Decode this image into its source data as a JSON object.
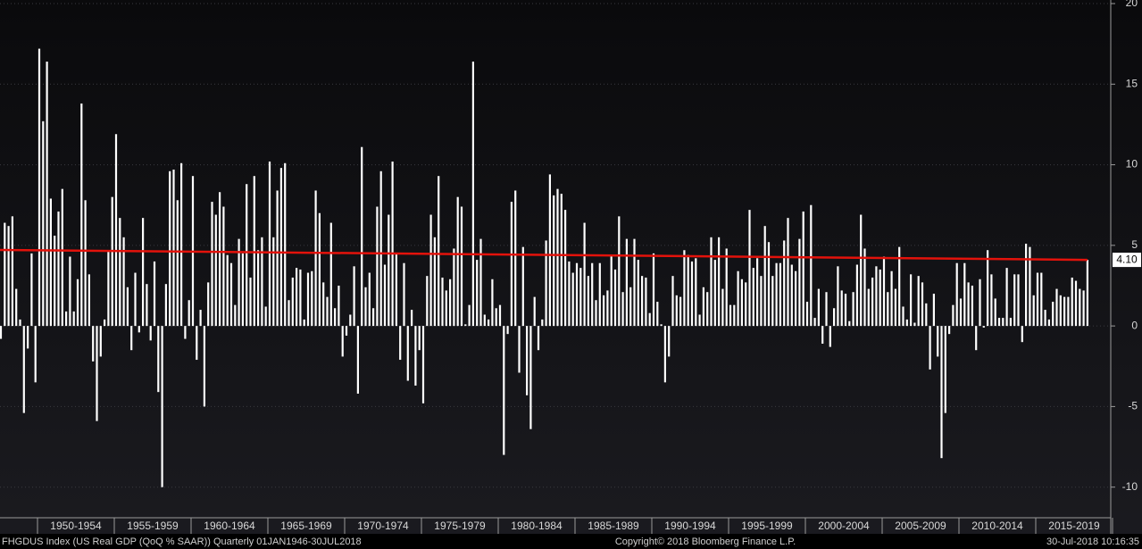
{
  "chart_data": {
    "type": "bar",
    "categories": [
      null,
      null,
      null,
      null,
      null,
      null,
      null,
      null,
      null,
      null,
      null,
      null,
      null,
      null,
      null,
      null,
      null,
      null,
      null,
      null,
      "1950-1954",
      null,
      null,
      null,
      null,
      null,
      null,
      null,
      null,
      null,
      null,
      null,
      null,
      null,
      null,
      null,
      null,
      null,
      null,
      null,
      "1955-1959",
      null,
      null,
      null,
      null,
      null,
      null,
      null,
      null,
      null,
      null,
      null,
      null,
      null,
      null,
      null,
      null,
      null,
      null,
      null,
      "1960-1964",
      null,
      null,
      null,
      null,
      null,
      null,
      null,
      null,
      null,
      null,
      null,
      null,
      null,
      null,
      null,
      null,
      null,
      null,
      null,
      "1965-1969",
      null,
      null,
      null,
      null,
      null,
      null,
      null,
      null,
      null,
      null,
      null,
      null,
      null,
      null,
      null,
      null,
      null,
      null,
      null,
      "1970-1974",
      null,
      null,
      null,
      null,
      null,
      null,
      null,
      null,
      null,
      null,
      null,
      null,
      null,
      null,
      null,
      null,
      null,
      null,
      null,
      "1975-1979",
      null,
      null,
      null,
      null,
      null,
      null,
      null,
      null,
      null,
      null,
      null,
      null,
      null,
      null,
      null,
      null,
      null,
      null,
      null,
      "1980-1984",
      null,
      null,
      null,
      null,
      null,
      null,
      null,
      null,
      null,
      null,
      null,
      null,
      null,
      null,
      null,
      null,
      null,
      null,
      null,
      "1985-1989",
      null,
      null,
      null,
      null,
      null,
      null,
      null,
      null,
      null,
      null,
      null,
      null,
      null,
      null,
      null,
      null,
      null,
      null,
      null,
      "1990-1994",
      null,
      null,
      null,
      null,
      null,
      null,
      null,
      null,
      null,
      null,
      null,
      null,
      null,
      null,
      null,
      null,
      null,
      null,
      null,
      "1995-1999",
      null,
      null,
      null,
      null,
      null,
      null,
      null,
      null,
      null,
      null,
      null,
      null,
      null,
      null,
      null,
      null,
      null,
      null,
      null,
      "2000-2004",
      null,
      null,
      null,
      null,
      null,
      null,
      null,
      null,
      null,
      null,
      null,
      null,
      null,
      null,
      null,
      null,
      null,
      null,
      null,
      "2005-2009",
      null,
      null,
      null,
      null,
      null,
      null,
      null,
      null,
      null,
      null,
      null,
      null,
      null,
      null,
      null,
      null,
      null,
      null,
      null,
      "2010-2014",
      null,
      null,
      null,
      null,
      null,
      null,
      null,
      null,
      null,
      null,
      null,
      null,
      null,
      null,
      null,
      null,
      null,
      null,
      null,
      "2015-2019",
      null,
      null,
      null
    ],
    "values": [
      -0.8,
      6.4,
      6.2,
      6.8,
      2.3,
      0.4,
      -5.4,
      -1.4,
      4.5,
      -3.5,
      17.2,
      12.7,
      16.4,
      7.9,
      5.6,
      7.1,
      8.5,
      0.9,
      4.3,
      0.9,
      2.9,
      13.8,
      7.8,
      3.2,
      -2.2,
      -5.9,
      -1.9,
      0.4,
      4.6,
      8.0,
      11.9,
      6.7,
      5.5,
      2.4,
      -1.5,
      3.3,
      -0.4,
      6.7,
      2.6,
      -0.9,
      4.0,
      -4.1,
      -10.0,
      2.6,
      9.6,
      9.7,
      7.8,
      10.1,
      -0.8,
      1.6,
      9.3,
      -2.1,
      1.0,
      -5.0,
      2.7,
      7.7,
      6.9,
      8.3,
      7.4,
      4.4,
      3.9,
      1.3,
      5.4,
      4.5,
      8.8,
      3.0,
      9.3,
      4.7,
      5.5,
      1.2,
      10.2,
      5.5,
      8.4,
      9.8,
      10.1,
      1.6,
      3.0,
      3.6,
      3.5,
      0.4,
      3.3,
      3.4,
      8.4,
      7.0,
      2.7,
      1.8,
      6.4,
      1.1,
      2.5,
      -1.9,
      -0.6,
      0.7,
      3.7,
      -4.2,
      11.1,
      2.4,
      3.3,
      1.1,
      7.4,
      9.6,
      3.8,
      6.9,
      10.2,
      4.5,
      -2.1,
      3.9,
      -3.4,
      1.0,
      -3.7,
      -1.5,
      -4.8,
      3.1,
      6.9,
      5.5,
      9.3,
      3.0,
      2.2,
      2.9,
      4.8,
      8.0,
      7.4,
      0.1,
      1.3,
      16.4,
      4.1,
      5.4,
      0.7,
      0.4,
      2.9,
      1.1,
      1.3,
      -8.0,
      -0.5,
      7.7,
      8.4,
      -2.9,
      4.9,
      -4.3,
      -6.4,
      1.8,
      -1.5,
      0.4,
      5.3,
      9.4,
      8.1,
      8.5,
      8.2,
      7.2,
      4.0,
      3.3,
      3.9,
      3.6,
      6.4,
      3.1,
      3.9,
      1.6,
      3.9,
      1.9,
      2.2,
      4.4,
      3.5,
      6.8,
      2.1,
      5.4,
      2.4,
      5.4,
      4.1,
      3.1,
      3.0,
      0.8,
      4.5,
      1.5,
      0.1,
      -3.5,
      -1.9,
      3.1,
      1.9,
      1.8,
      4.7,
      4.4,
      4.0,
      4.2,
      0.7,
      2.4,
      2.1,
      5.5,
      4.1,
      5.5,
      2.3,
      4.8,
      1.3,
      1.3,
      3.4,
      2.9,
      2.7,
      7.2,
      3.6,
      4.2,
      3.1,
      6.2,
      5.2,
      3.1,
      3.9,
      3.9,
      5.3,
      6.7,
      3.8,
      3.4,
      5.4,
      7.1,
      1.5,
      7.5,
      0.5,
      2.3,
      -1.1,
      2.1,
      -1.3,
      1.1,
      3.7,
      2.2,
      2.0,
      0.3,
      2.1,
      3.8,
      6.9,
      4.8,
      2.3,
      3.0,
      3.7,
      3.5,
      4.3,
      2.1,
      3.4,
      2.3,
      4.9,
      1.2,
      0.4,
      3.2,
      0.2,
      3.1,
      2.7,
      1.4,
      -2.7,
      2.0,
      -1.9,
      -8.2,
      -5.4,
      -0.5,
      1.3,
      3.9,
      1.7,
      3.9,
      2.7,
      2.5,
      -1.5,
      2.9,
      -0.1,
      4.7,
      3.2,
      1.7,
      0.5,
      0.5,
      3.6,
      0.5,
      3.2,
      3.2,
      -1.0,
      5.1,
      4.9,
      1.9,
      3.3,
      3.3,
      1.0,
      0.4,
      1.5,
      2.3,
      1.9,
      1.8,
      1.8,
      3.0,
      2.8,
      2.3,
      2.2,
      4.1
    ],
    "color": "#ffffff",
    "ylim": [
      -11.9,
      20
    ],
    "yticks": [
      20,
      15,
      10,
      5,
      0,
      -5,
      -10
    ],
    "grid": true,
    "trend": {
      "color": "#e3120b",
      "values": [
        4.72,
        4.1
      ],
      "end_label": {
        "value": 4.1,
        "label": "4.10"
      }
    }
  },
  "footer": {
    "left": "FHGDUS Index (US Real GDP (QoQ % SAAR))  Quarterly 01JAN1946-30JUL2018",
    "center": "Copyright© 2018 Bloomberg Finance L.P.",
    "right": "30-Jul-2018 10:16:35"
  }
}
